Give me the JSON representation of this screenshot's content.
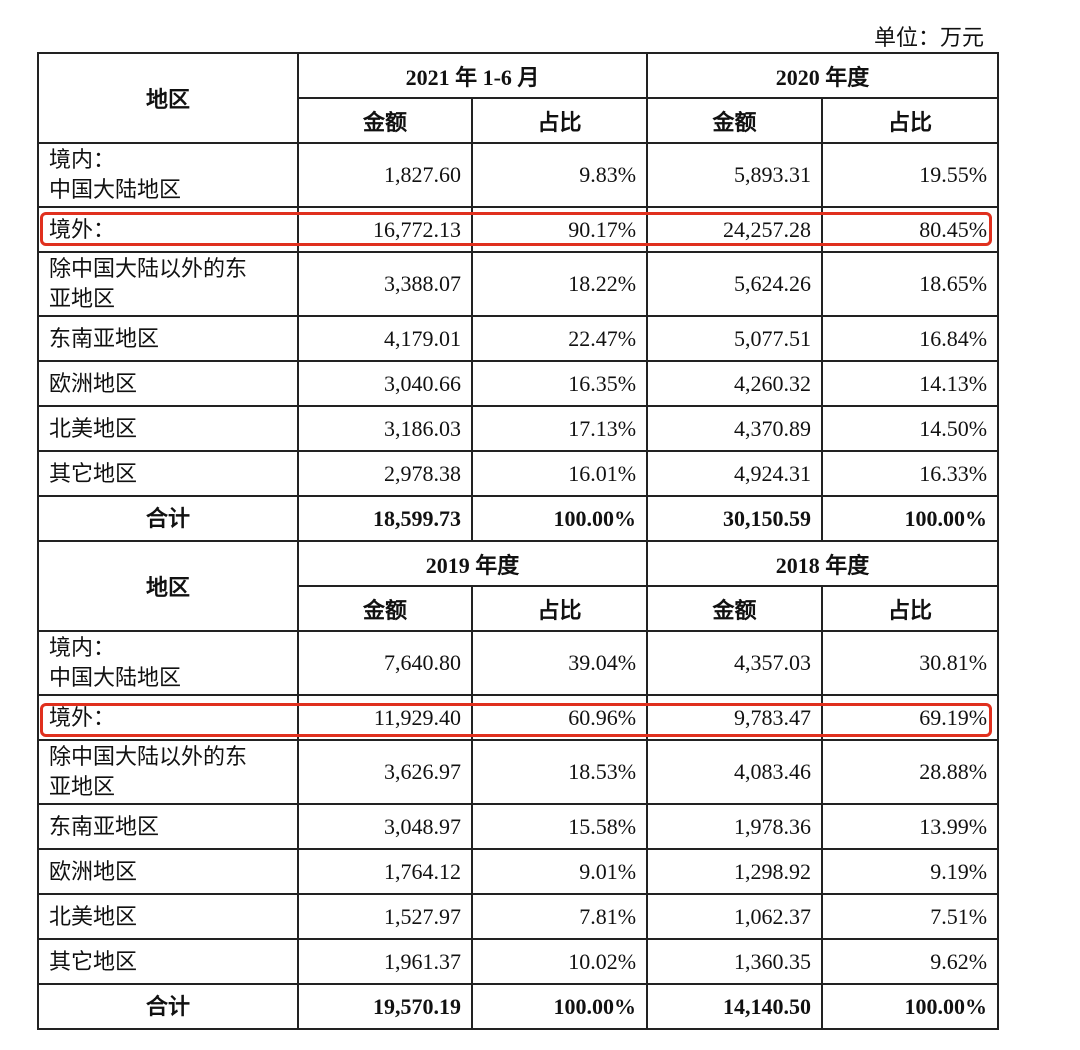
{
  "unit_label": "单位：万元",
  "region_header": "地区",
  "amount_header": "金额",
  "share_header": "占比",
  "highlight_color": "#e0301e",
  "blocks": [
    {
      "periods": [
        "2021 年 1-6 月",
        "2020 年度"
      ],
      "rows": [
        {
          "label": [
            "境内：",
            "中国大陆地区"
          ],
          "values": [
            "1,827.60",
            "9.83%",
            "5,893.31",
            "19.55%"
          ]
        },
        {
          "label": [
            "境外："
          ],
          "values": [
            "16,772.13",
            "90.17%",
            "24,257.28",
            "80.45%"
          ],
          "highlighted": true
        },
        {
          "label": [
            "除中国大陆以外的东",
            "亚地区"
          ],
          "values": [
            "3,388.07",
            "18.22%",
            "5,624.26",
            "18.65%"
          ]
        },
        {
          "label": [
            "东南亚地区"
          ],
          "values": [
            "4,179.01",
            "22.47%",
            "5,077.51",
            "16.84%"
          ]
        },
        {
          "label": [
            "欧洲地区"
          ],
          "values": [
            "3,040.66",
            "16.35%",
            "4,260.32",
            "14.13%"
          ]
        },
        {
          "label": [
            "北美地区"
          ],
          "values": [
            "3,186.03",
            "17.13%",
            "4,370.89",
            "14.50%"
          ]
        },
        {
          "label": [
            "其它地区"
          ],
          "values": [
            "2,978.38",
            "16.01%",
            "4,924.31",
            "16.33%"
          ]
        },
        {
          "label": [
            "合计"
          ],
          "values": [
            "18,599.73",
            "100.00%",
            "30,150.59",
            "100.00%"
          ],
          "total": true
        }
      ]
    },
    {
      "periods": [
        "2019 年度",
        "2018 年度"
      ],
      "rows": [
        {
          "label": [
            "境内：",
            "中国大陆地区"
          ],
          "values": [
            "7,640.80",
            "39.04%",
            "4,357.03",
            "30.81%"
          ]
        },
        {
          "label": [
            "境外："
          ],
          "values": [
            "11,929.40",
            "60.96%",
            "9,783.47",
            "69.19%"
          ],
          "highlighted": true
        },
        {
          "label": [
            "除中国大陆以外的东",
            "亚地区"
          ],
          "values": [
            "3,626.97",
            "18.53%",
            "4,083.46",
            "28.88%"
          ]
        },
        {
          "label": [
            "东南亚地区"
          ],
          "values": [
            "3,048.97",
            "15.58%",
            "1,978.36",
            "13.99%"
          ]
        },
        {
          "label": [
            "欧洲地区"
          ],
          "values": [
            "1,764.12",
            "9.01%",
            "1,298.92",
            "9.19%"
          ]
        },
        {
          "label": [
            "北美地区"
          ],
          "values": [
            "1,527.97",
            "7.81%",
            "1,062.37",
            "7.51%"
          ]
        },
        {
          "label": [
            "其它地区"
          ],
          "values": [
            "1,961.37",
            "10.02%",
            "1,360.35",
            "9.62%"
          ]
        },
        {
          "label": [
            "合计"
          ],
          "values": [
            "19,570.19",
            "100.00%",
            "14,140.50",
            "100.00%"
          ],
          "total": true
        }
      ]
    }
  ]
}
